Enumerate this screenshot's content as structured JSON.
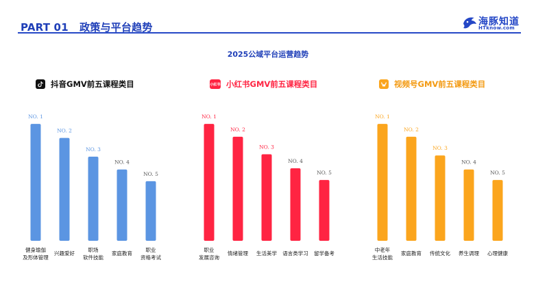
{
  "header": {
    "section": "PART 01",
    "title": "政策与平台趋势",
    "logo_text": "海豚知道",
    "logo_sub": "HTknow.com"
  },
  "main_title": "2025公域平台运营趋势",
  "colors": {
    "accent": "#2447c6",
    "douyin": "#5b95e2",
    "xiaohongshu": "#ff2442",
    "shipinhao": "#fba51d"
  },
  "chart_data": [
    {
      "type": "bar",
      "title": "抖音GMV前五课程类目",
      "icon": "douyin-icon",
      "color": "#5b95e2",
      "categories": [
        "健身瑜伽\n及形体管理",
        "兴趣爱好",
        "职场\n软件技能",
        "家庭教育",
        "职业\n资格考试"
      ],
      "rank_labels": [
        "NO. 1",
        "NO. 2",
        "NO. 3",
        "NO. 4",
        "NO. 5"
      ],
      "values": [
        100,
        88,
        72,
        61,
        51
      ],
      "ylim": [
        0,
        110
      ]
    },
    {
      "type": "bar",
      "title": "小红书GMV前五课程类目",
      "icon": "xiaohongshu-icon",
      "icon_text": "小红书",
      "color": "#ff2442",
      "categories": [
        "职业\n发展咨询",
        "情绪管理",
        "生活美学",
        "语言类学习",
        "留学备考"
      ],
      "rank_labels": [
        "NO. 1",
        "NO. 2",
        "NO. 3",
        "NO. 4",
        "NO. 5"
      ],
      "values": [
        100,
        89,
        74,
        62,
        52
      ],
      "ylim": [
        0,
        110
      ]
    },
    {
      "type": "bar",
      "title": "视频号GMV前五课程类目",
      "icon": "shipinhao-icon",
      "color": "#fba51d",
      "categories": [
        "中老年\n生活技能",
        "家庭教育",
        "传统文化",
        "养生调理",
        "心理健康"
      ],
      "rank_labels": [
        "NO. 1",
        "NO. 2",
        "NO. 3",
        "NO. 4",
        "NO. 5"
      ],
      "values": [
        100,
        89,
        73,
        61,
        52
      ],
      "ylim": [
        0,
        110
      ]
    }
  ]
}
